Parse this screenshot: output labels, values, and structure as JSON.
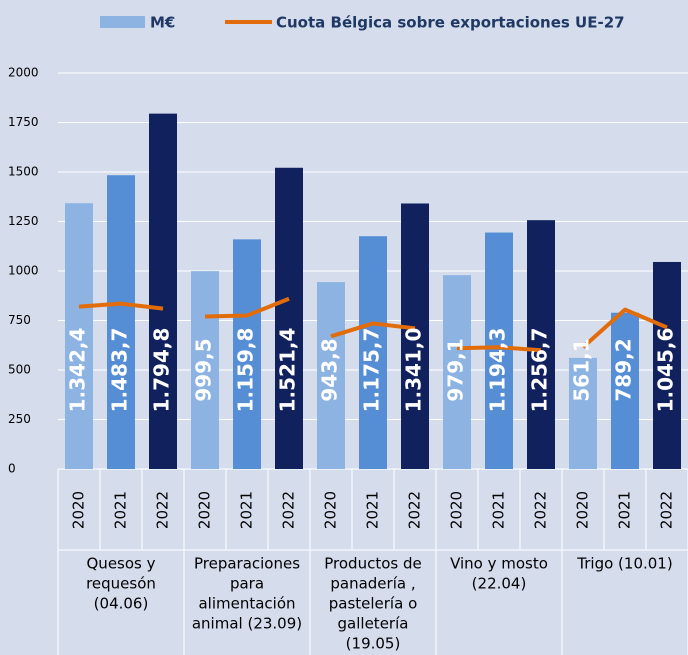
{
  "chart_data": {
    "type": "bar",
    "series": [
      {
        "name": "M€",
        "type": "bar",
        "colors": [
          "#8db3e2",
          "#558ed5",
          "#10215e"
        ],
        "values": [
          1342.4,
          1483.7,
          1794.8,
          999.5,
          1159.8,
          1521.4,
          943.8,
          1175.7,
          1341.0,
          979.1,
          1194.3,
          1256.7,
          561.1,
          789.2,
          1045.6
        ],
        "value_labels": [
          "1.342,4",
          "1.483,7",
          "1.794,8",
          "999,5",
          "1.159,8",
          "1.521,4",
          "943,8",
          "1.175,7",
          "1.341,0",
          "979,1",
          "1.194,3",
          "1.256,7",
          "561,1",
          "789,2",
          "1.045,6"
        ]
      },
      {
        "name": "Cuota Bélgica sobre exportaciones UE-27",
        "type": "line",
        "color": "#e36c0a",
        "values": [
          820,
          835,
          810,
          770,
          775,
          860,
          670,
          735,
          710,
          610,
          615,
          600,
          615,
          805,
          715
        ]
      }
    ],
    "categories": [
      "2020",
      "2021",
      "2022",
      "2020",
      "2021",
      "2022",
      "2020",
      "2021",
      "2022",
      "2020",
      "2021",
      "2022",
      "2020",
      "2021",
      "2022"
    ],
    "groups": [
      [
        "Quesos y",
        "requesón",
        "(04.06)"
      ],
      [
        "Preparaciones",
        "para",
        "alimentación",
        "animal  (23.09)"
      ],
      [
        "Productos de",
        "panadería ,",
        "pastelería o",
        "galletería",
        "(19.05)"
      ],
      [
        "Vino y mosto",
        "(22.04)"
      ],
      [
        "Trigo (10.01)"
      ]
    ],
    "ylim": [
      0,
      2000
    ],
    "yticks": [
      0,
      250,
      500,
      750,
      1000,
      1250,
      1500,
      1750,
      2000
    ],
    "grid": true
  }
}
